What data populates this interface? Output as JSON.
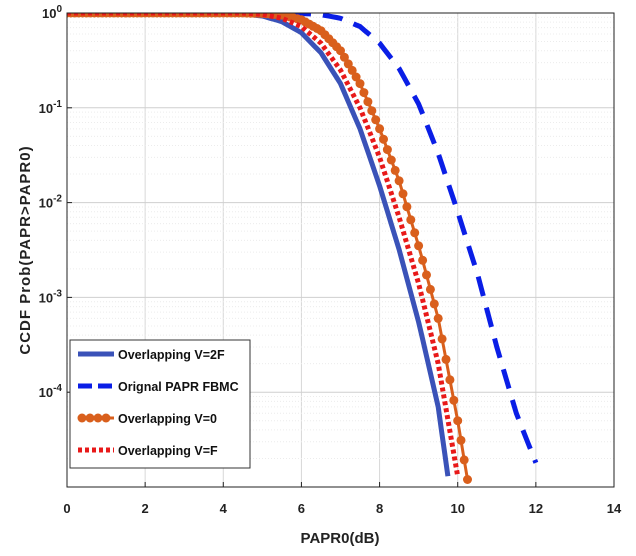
{
  "chart_data": {
    "type": "line",
    "title": "",
    "xlabel": "PAPR0(dB)",
    "ylabel": "CCDF Prob(PAPR>PAPR0)",
    "xlim": [
      0,
      14
    ],
    "ylim": [
      1e-05,
      1
    ],
    "y_scale": "log",
    "grid": true,
    "legend_position": "bottom-left",
    "x_ticks": [
      "0",
      "2",
      "4",
      "6",
      "8",
      "10",
      "12",
      "14"
    ],
    "y_ticks": [
      {
        "base": "10",
        "exp": "0"
      },
      {
        "base": "10",
        "exp": "-1"
      },
      {
        "base": "10",
        "exp": "-2"
      },
      {
        "base": "10",
        "exp": "-3"
      },
      {
        "base": "10",
        "exp": "-4"
      }
    ],
    "series": [
      {
        "name": "Overlapping V=2F",
        "color": "#3a52b8",
        "style": "solid",
        "x": [
          0,
          4,
          4.5,
          5,
          5.5,
          6,
          6.5,
          7,
          7.5,
          8,
          8.5,
          9,
          9.5,
          9.75
        ],
        "y": [
          1,
          1,
          0.98,
          0.93,
          0.81,
          0.62,
          0.38,
          0.18,
          0.06,
          0.015,
          0.0032,
          0.00055,
          7e-05,
          1.3e-05
        ]
      },
      {
        "name": "Orignal PAPR FBMC",
        "color": "#0a1ee6",
        "style": "dashed",
        "x": [
          0,
          5.5,
          6,
          6.5,
          7,
          7.5,
          8,
          8.5,
          9,
          9.5,
          10,
          10.5,
          11,
          11.5,
          12
        ],
        "y": [
          1,
          1,
          0.99,
          0.96,
          0.88,
          0.72,
          0.48,
          0.26,
          0.11,
          0.033,
          0.008,
          0.0018,
          0.0003,
          6e-05,
          1.8e-05
        ]
      },
      {
        "name": "Overlapping V=0",
        "color": "#d95f1c",
        "style": "dot-marker",
        "x": [
          0,
          4.5,
          5,
          5.5,
          6,
          6.5,
          7,
          7.5,
          8,
          8.5,
          9,
          9.5,
          10,
          10.25
        ],
        "y": [
          1,
          1,
          0.99,
          0.95,
          0.85,
          0.65,
          0.4,
          0.18,
          0.06,
          0.017,
          0.0035,
          0.0006,
          5e-05,
          1.2e-05
        ]
      },
      {
        "name": "Overlapping V=F",
        "color": "#e81919",
        "style": "dotted",
        "x": [
          0,
          4.5,
          5,
          5.5,
          6,
          6.5,
          7,
          7.5,
          8,
          8.5,
          9,
          9.5,
          10
        ],
        "y": [
          1,
          1,
          0.97,
          0.88,
          0.72,
          0.48,
          0.25,
          0.1,
          0.03,
          0.007,
          0.0014,
          0.0002,
          1.3e-05
        ]
      }
    ]
  }
}
